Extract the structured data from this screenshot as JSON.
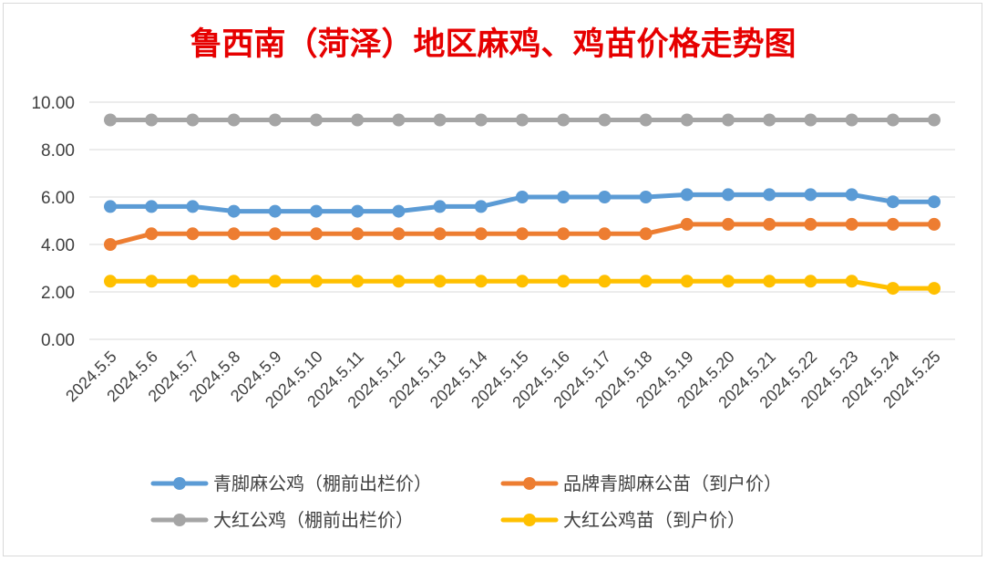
{
  "chart_data": {
    "type": "line",
    "title": "鲁西南（菏泽）地区麻鸡、鸡苗价格走势图",
    "xlabel": "",
    "ylabel": "",
    "ylim": [
      0,
      10
    ],
    "yticks": [
      "0.00",
      "2.00",
      "4.00",
      "6.00",
      "8.00",
      "10.00"
    ],
    "grid": true,
    "legend_position": "bottom",
    "categories": [
      "2024.5.5",
      "2024.5.6",
      "2024.5.7",
      "2024.5.8",
      "2024.5.9",
      "2024.5.10",
      "2024.5.11",
      "2024.5.12",
      "2024.5.13",
      "2024.5.14",
      "2024.5.15",
      "2024.5.16",
      "2024.5.17",
      "2024.5.18",
      "2024.5.19",
      "2024.5.20",
      "2024.5.21",
      "2024.5.22",
      "2024.5.23",
      "2024.5.24",
      "2024.5.25"
    ],
    "series": [
      {
        "name": "青脚麻公鸡（棚前出栏价）",
        "color": "#5b9bd5",
        "values": [
          5.6,
          5.6,
          5.6,
          5.4,
          5.4,
          5.4,
          5.4,
          5.4,
          5.6,
          5.6,
          6.0,
          6.0,
          6.0,
          6.0,
          6.1,
          6.1,
          6.1,
          6.1,
          6.1,
          5.8,
          5.8
        ]
      },
      {
        "name": "品牌青脚麻公苗（到户价）",
        "color": "#ed7d31",
        "values": [
          4.0,
          4.45,
          4.45,
          4.45,
          4.45,
          4.45,
          4.45,
          4.45,
          4.45,
          4.45,
          4.45,
          4.45,
          4.45,
          4.45,
          4.85,
          4.85,
          4.85,
          4.85,
          4.85,
          4.85,
          4.85
        ]
      },
      {
        "name": "大红公鸡（棚前出栏价）",
        "color": "#a5a5a5",
        "values": [
          9.25,
          9.25,
          9.25,
          9.25,
          9.25,
          9.25,
          9.25,
          9.25,
          9.25,
          9.25,
          9.25,
          9.25,
          9.25,
          9.25,
          9.25,
          9.25,
          9.25,
          9.25,
          9.25,
          9.25,
          9.25
        ]
      },
      {
        "name": "大红公鸡苗（到户价）",
        "color": "#ffc000",
        "values": [
          2.45,
          2.45,
          2.45,
          2.45,
          2.45,
          2.45,
          2.45,
          2.45,
          2.45,
          2.45,
          2.45,
          2.45,
          2.45,
          2.45,
          2.45,
          2.45,
          2.45,
          2.45,
          2.45,
          2.15,
          2.15
        ]
      }
    ]
  }
}
